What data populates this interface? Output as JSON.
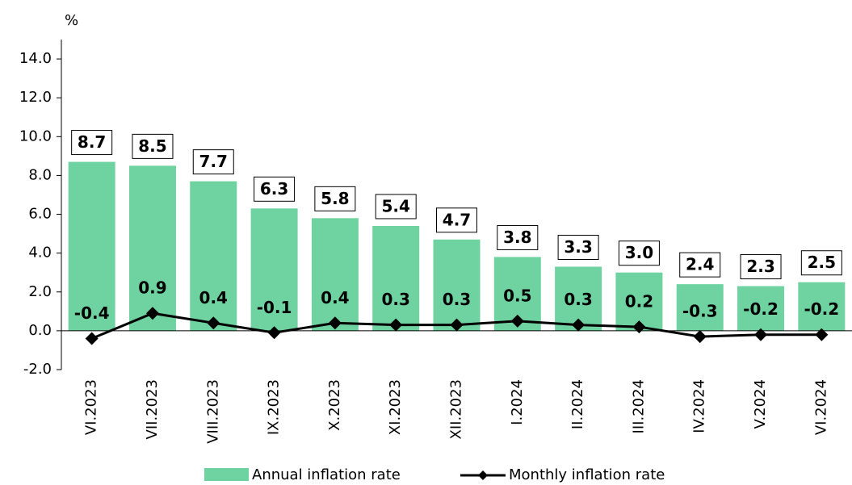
{
  "chart_data": {
    "type": "bar",
    "y_label": "%",
    "categories": [
      "VI.2023",
      "VII.2023",
      "VIII.2023",
      "IX.2023",
      "X.2023",
      "XI.2023",
      "XII.2023",
      "I.2024",
      "II.2024",
      "III.2024",
      "IV.2024",
      "V.2024",
      "VI.2024"
    ],
    "series": [
      {
        "name": "Annual inflation rate",
        "type": "bar",
        "color": "#6ed3a0",
        "values": [
          8.7,
          8.5,
          7.7,
          6.3,
          5.8,
          5.4,
          4.7,
          3.8,
          3.3,
          3.0,
          2.4,
          2.3,
          2.5
        ],
        "value_labels": [
          "8.7",
          "8.5",
          "7.7",
          "6.3",
          "5.8",
          "5.4",
          "4.7",
          "3.8",
          "3.3",
          "3.0",
          "2.4",
          "2.3",
          "2.5"
        ]
      },
      {
        "name": "Monthly inflation rate",
        "type": "line",
        "color": "#000000",
        "values": [
          -0.4,
          0.9,
          0.4,
          -0.1,
          0.4,
          0.3,
          0.3,
          0.5,
          0.3,
          0.2,
          -0.3,
          -0.2,
          -0.2
        ]
      }
    ],
    "ylim": [
      -2,
      15
    ],
    "yticks": [
      {
        "value": -2,
        "label": "-2.0"
      },
      {
        "value": 0,
        "label": "0.0"
      },
      {
        "value": 2,
        "label": "2.0"
      },
      {
        "value": 4,
        "label": "4.0"
      },
      {
        "value": 6,
        "label": "6.0"
      },
      {
        "value": 8,
        "label": "8.0"
      },
      {
        "value": 10,
        "label": "10.0"
      },
      {
        "value": 12,
        "label": "12.0"
      },
      {
        "value": 14,
        "label": "14.0"
      }
    ],
    "grid": false,
    "legend": "bottom"
  }
}
